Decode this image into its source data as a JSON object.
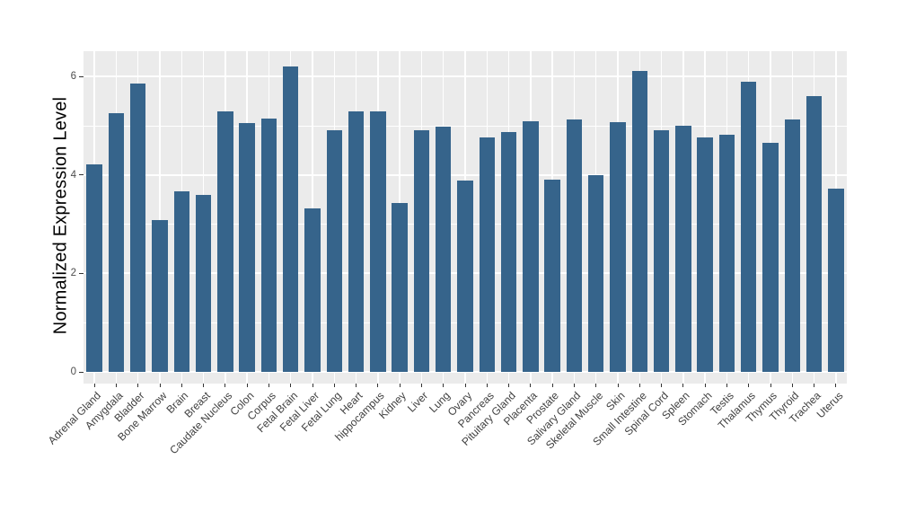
{
  "chart_data": {
    "type": "bar",
    "title": "",
    "xlabel": "",
    "ylabel": "Normalized Expression Level",
    "categories": [
      "Adrenal Gland",
      "Amygdala",
      "Bladder",
      "Bone Marrow",
      "Brain",
      "Breast",
      "Caudate Nucleus",
      "Colon",
      "Corpus",
      "Fetal Brain",
      "Fetal Liver",
      "Fetal Lung",
      "Heart",
      "hippocampus",
      "Kidney",
      "Liver",
      "Lung",
      "Ovary",
      "Pancreas",
      "Pituitary Gland",
      "Placenta",
      "Prostate",
      "Salivary Gland",
      "Skeletal Muscle",
      "Skin",
      "Small Intestine",
      "Spinal Cord",
      "Spleen",
      "Stomach",
      "Testis",
      "Thalamus",
      "Thymus",
      "Thyroid",
      "Trachea",
      "Uterus"
    ],
    "values": [
      4.21,
      5.25,
      5.85,
      3.08,
      3.66,
      3.6,
      5.29,
      5.06,
      5.15,
      6.21,
      3.33,
      4.91,
      5.3,
      5.3,
      3.44,
      4.91,
      4.98,
      3.88,
      4.76,
      4.88,
      5.1,
      3.9,
      5.13,
      3.99,
      5.08,
      6.12,
      4.9,
      5.0,
      4.77,
      4.81,
      5.9,
      4.65,
      5.12,
      5.6,
      3.72
    ],
    "yticks": [
      0,
      2,
      4,
      6
    ],
    "minor_yticks": [
      1,
      3,
      5
    ],
    "ylim": [
      -0.24,
      6.51
    ],
    "grid": "on",
    "legend": "none",
    "colors": {
      "bar": "#36648B",
      "panel_background": "#EBEBEB",
      "grid": "#FFFFFF",
      "axis_text": "#4D4D4D",
      "axis_title": "#000000",
      "tick_mark": "#333333",
      "figure_background": "#FFFFFF"
    }
  }
}
